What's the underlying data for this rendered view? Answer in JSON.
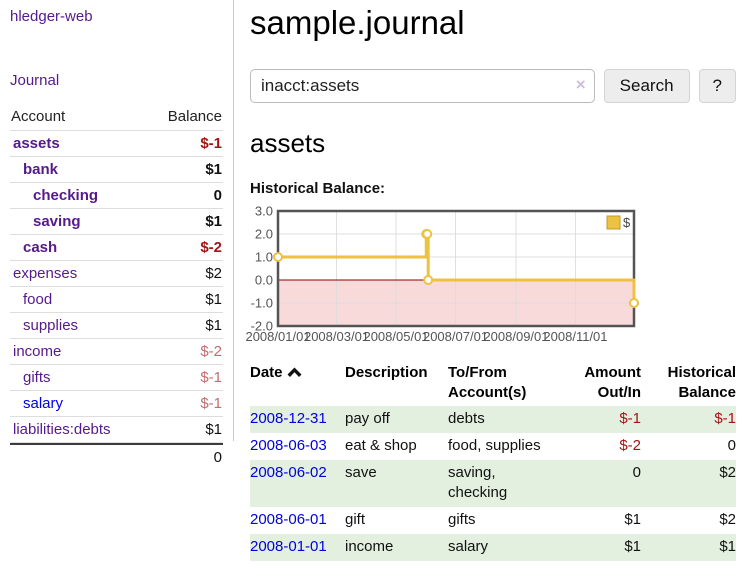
{
  "sidebar": {
    "app_title": "hledger-web",
    "journal_label": "Journal",
    "accounts": {
      "headers": {
        "account": "Account",
        "balance": "Balance"
      },
      "rows": [
        {
          "name": "assets",
          "depth": 1,
          "bold": true,
          "link": "purple",
          "balance": "$-1",
          "balance_class": "neg"
        },
        {
          "name": "bank",
          "depth": 2,
          "bold": true,
          "link": "purple",
          "balance": "$1",
          "balance_class": "pos"
        },
        {
          "name": "checking",
          "depth": 3,
          "bold": true,
          "link": "purple",
          "balance": "0",
          "balance_class": "pos"
        },
        {
          "name": "saving",
          "depth": 3,
          "bold": true,
          "link": "purple",
          "balance": "$1",
          "balance_class": "pos"
        },
        {
          "name": "cash",
          "depth": 2,
          "bold": true,
          "link": "purple",
          "balance": "$-2",
          "balance_class": "neg"
        },
        {
          "name": "expenses",
          "depth": 1,
          "bold": false,
          "link": "purple",
          "balance": "$2",
          "balance_class": "pos"
        },
        {
          "name": "food",
          "depth": 2,
          "bold": false,
          "link": "purple",
          "balance": "$1",
          "balance_class": "pos"
        },
        {
          "name": "supplies",
          "depth": 2,
          "bold": false,
          "link": "purple",
          "balance": "$1",
          "balance_class": "pos"
        },
        {
          "name": "income",
          "depth": 1,
          "bold": false,
          "link": "purple",
          "balance": "$-2",
          "balance_class": "neg-faded"
        },
        {
          "name": "gifts",
          "depth": 2,
          "bold": false,
          "link": "purple",
          "balance": "$-1",
          "balance_class": "neg-faded"
        },
        {
          "name": "salary",
          "depth": 2,
          "bold": false,
          "link": "blue",
          "balance": "$-1",
          "balance_class": "neg-faded"
        },
        {
          "name": "liabilities:debts",
          "depth": 1,
          "bold": false,
          "link": "purple",
          "balance": "$1",
          "balance_class": "pos"
        }
      ],
      "total": "0"
    }
  },
  "main": {
    "title": "sample.journal",
    "search": {
      "query": "inacct:assets",
      "clear_icon": "×",
      "button_label": "Search",
      "help_label": "?"
    },
    "account_heading": "assets",
    "chart_heading": "Historical Balance:"
  },
  "chart_data": {
    "type": "line",
    "step": true,
    "title": "Historical Balance:",
    "series": [
      {
        "name": "$",
        "color": "#edc240",
        "points": [
          [
            "2008-01-01",
            1
          ],
          [
            "2008-06-01",
            2
          ],
          [
            "2008-06-02",
            2
          ],
          [
            "2008-06-03",
            0
          ],
          [
            "2008-12-31",
            -1
          ]
        ]
      }
    ],
    "x_range": [
      "2008-01-01",
      "2008-12-31"
    ],
    "x_ticks": [
      "2008/01/01",
      "2008/03/01",
      "2008/05/01",
      "2008/07/01",
      "2008/09/01",
      "2008/11/01"
    ],
    "y_ticks": [
      "3.0",
      "2.0",
      "1.0",
      "0.0",
      "-1.0",
      "-2.0"
    ],
    "ylim": [
      -2,
      3
    ],
    "legend": {
      "label": "$",
      "position": "top-right"
    },
    "zero_line_color": "#8b0000",
    "negative_region_color": "#f9dada",
    "grid": true
  },
  "register": {
    "headers": [
      {
        "label": "Date",
        "sort": "asc"
      },
      {
        "label": "Description"
      },
      {
        "label": "To/From Account(s)"
      },
      {
        "label": "Amount Out/In",
        "align": "right"
      },
      {
        "label": "Historical Balance",
        "align": "right"
      }
    ],
    "rows": [
      {
        "date": "2008-12-31",
        "description": "pay off",
        "accounts": "debts",
        "amount": "$-1",
        "amount_class": "neg",
        "balance": "$-1",
        "balance_class": "neg"
      },
      {
        "date": "2008-06-03",
        "description": "eat & shop",
        "accounts": "food, supplies",
        "amount": "$-2",
        "amount_class": "neg",
        "balance": "0",
        "balance_class": "pos"
      },
      {
        "date": "2008-06-02",
        "description": "save",
        "accounts": "saving, checking",
        "amount": "0",
        "amount_class": "pos",
        "balance": "$2",
        "balance_class": "pos"
      },
      {
        "date": "2008-06-01",
        "description": "gift",
        "accounts": "gifts",
        "amount": "$1",
        "amount_class": "pos",
        "balance": "$2",
        "balance_class": "pos"
      },
      {
        "date": "2008-01-01",
        "description": "income",
        "accounts": "salary",
        "amount": "$1",
        "amount_class": "pos",
        "balance": "$1",
        "balance_class": "pos"
      }
    ]
  },
  "colors": {
    "link_purple": "#551a8b",
    "link_blue": "#0000ee",
    "negative": "#a31515",
    "negative_faded": "#bf6e6e",
    "row_green": "#e3efdf",
    "accent_yellow": "#edc240",
    "chart_border": "#545454"
  }
}
